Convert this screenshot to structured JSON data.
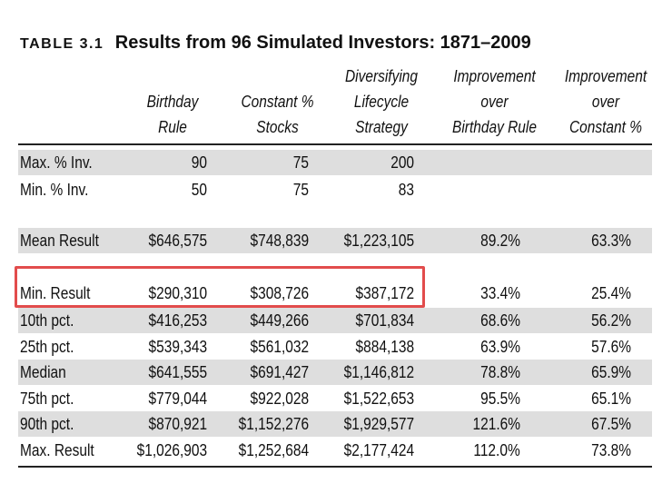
{
  "table": {
    "label": "TABLE 3.1",
    "title": "Results from 96 Simulated Investors: 1871–2009",
    "columns": [
      [
        "Birthday",
        "Rule"
      ],
      [
        "Constant %",
        "Stocks"
      ],
      [
        "Diversifying",
        "Lifecycle",
        "Strategy"
      ],
      [
        "Improvement",
        "over",
        "Birthday Rule"
      ],
      [
        "Improvement",
        "over",
        "Constant %"
      ]
    ],
    "rows": [
      {
        "label": "Max. % Inv.",
        "values": [
          "90",
          "75",
          "200",
          "",
          ""
        ]
      },
      {
        "label": "Min. % Inv.",
        "values": [
          "50",
          "75",
          "83",
          "",
          ""
        ]
      },
      {
        "label": "Mean Result",
        "values": [
          "$646,575",
          "$748,839",
          "$1,223,105",
          "89.2%",
          "63.3%"
        ]
      },
      {
        "label": "Min. Result",
        "values": [
          "$290,310",
          "$308,726",
          "$387,172",
          "33.4%",
          "25.4%"
        ]
      },
      {
        "label": "10th pct.",
        "values": [
          "$416,253",
          "$449,266",
          "$701,834",
          "68.6%",
          "56.2%"
        ]
      },
      {
        "label": "25th pct.",
        "values": [
          "$539,343",
          "$561,032",
          "$884,138",
          "63.9%",
          "57.6%"
        ]
      },
      {
        "label": "Median",
        "values": [
          "$641,555",
          "$691,427",
          "$1,146,812",
          "78.8%",
          "65.9%"
        ]
      },
      {
        "label": "75th pct.",
        "values": [
          "$779,044",
          "$922,028",
          "$1,522,653",
          "95.5%",
          "65.1%"
        ]
      },
      {
        "label": "90th pct.",
        "values": [
          "$870,921",
          "$1,152,276",
          "$1,929,577",
          "121.6%",
          "67.5%"
        ]
      },
      {
        "label": "Max. Result",
        "values": [
          "$1,026,903",
          "$1,252,684",
          "$2,177,424",
          "112.0%",
          "73.8%"
        ]
      }
    ]
  },
  "colors": {
    "shade": "#dedede",
    "highlight": "#e24c4c"
  }
}
